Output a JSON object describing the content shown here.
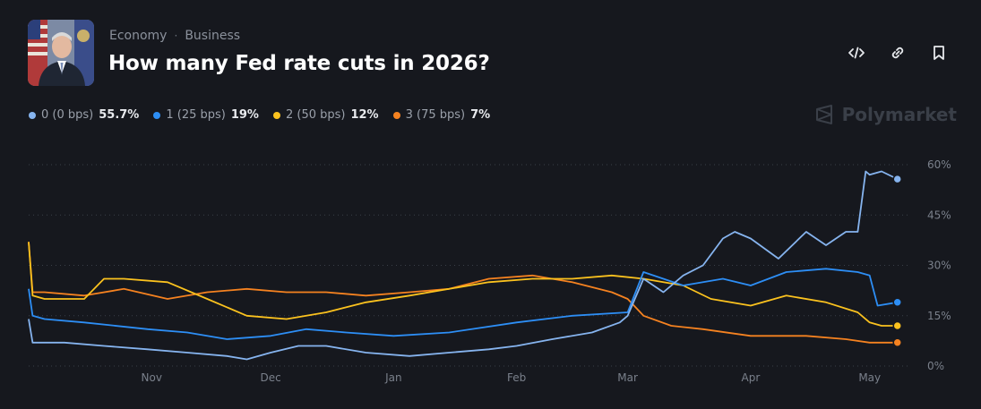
{
  "header": {
    "category": "Economy",
    "subcategory": "Business",
    "title": "How many Fed rate cuts in 2026?"
  },
  "actions": [
    {
      "name": "embed-icon"
    },
    {
      "name": "link-icon"
    },
    {
      "name": "bookmark-icon"
    }
  ],
  "brand": {
    "name": "Polymarket"
  },
  "colors": {
    "s0": "#86b4ef",
    "s1": "#2d8ef5",
    "s2": "#fbc21e",
    "s3": "#f58220",
    "background": "#16181e"
  },
  "legend": [
    {
      "label": "0 (0 bps)",
      "value": "55.7%"
    },
    {
      "label": "1 (25 bps)",
      "value": "19%"
    },
    {
      "label": "2 (50 bps)",
      "value": "12%"
    },
    {
      "label": "3 (75 bps)",
      "value": "7%"
    }
  ],
  "chart_data": {
    "type": "line",
    "y_ticks": [
      "60%",
      "45%",
      "30%",
      "15%",
      "0%"
    ],
    "x_ticks": [
      "Nov",
      "Dec",
      "Jan",
      "Feb",
      "Mar",
      "Apr",
      "May"
    ],
    "ylim": [
      0,
      60
    ],
    "grid": true,
    "legend_position": "top-left",
    "x_domain": [
      "2025-10-01",
      "2026-05-11"
    ],
    "series": [
      {
        "name": "0 (0 bps)",
        "color": "#86b4ef",
        "x": [
          "2025-10-01",
          "2025-10-02",
          "2025-10-04",
          "2025-10-10",
          "2025-10-20",
          "2025-10-31",
          "2025-11-10",
          "2025-11-20",
          "2025-11-25",
          "2025-12-01",
          "2025-12-08",
          "2025-12-15",
          "2025-12-25",
          "2026-01-05",
          "2026-01-15",
          "2026-01-25",
          "2026-02-01",
          "2026-02-10",
          "2026-02-20",
          "2026-02-27",
          "2026-03-01",
          "2026-03-05",
          "2026-03-10",
          "2026-03-15",
          "2026-03-20",
          "2026-03-25",
          "2026-03-28",
          "2026-04-01",
          "2026-04-08",
          "2026-04-15",
          "2026-04-20",
          "2026-04-25",
          "2026-04-28",
          "2026-04-30",
          "2026-05-01",
          "2026-05-04",
          "2026-05-08"
        ],
        "y": [
          14,
          7,
          7,
          7,
          6,
          5,
          4,
          3,
          2,
          4,
          6,
          6,
          4,
          3,
          4,
          5,
          6,
          8,
          10,
          13,
          15,
          26,
          22,
          27,
          30,
          38,
          40,
          38,
          32,
          40,
          36,
          40,
          40,
          58,
          57,
          58,
          55.7
        ]
      },
      {
        "name": "1 (25 bps)",
        "color": "#2d8ef5",
        "x": [
          "2025-10-01",
          "2025-10-02",
          "2025-10-05",
          "2025-10-15",
          "2025-10-31",
          "2025-11-10",
          "2025-11-20",
          "2025-12-01",
          "2025-12-10",
          "2025-12-20",
          "2026-01-01",
          "2026-01-15",
          "2026-02-01",
          "2026-02-15",
          "2026-03-01",
          "2026-03-05",
          "2026-03-15",
          "2026-03-25",
          "2026-04-01",
          "2026-04-10",
          "2026-04-20",
          "2026-04-28",
          "2026-05-01",
          "2026-05-03",
          "2026-05-08"
        ],
        "y": [
          23,
          15,
          14,
          13,
          11,
          10,
          8,
          9,
          11,
          10,
          9,
          10,
          13,
          15,
          16,
          28,
          24,
          26,
          24,
          28,
          29,
          28,
          27,
          18,
          19
        ]
      },
      {
        "name": "2 (50 bps)",
        "color": "#fbc21e",
        "x": [
          "2025-10-01",
          "2025-10-02",
          "2025-10-05",
          "2025-10-15",
          "2025-10-20",
          "2025-10-25",
          "2025-11-05",
          "2025-11-15",
          "2025-11-25",
          "2025-12-05",
          "2025-12-15",
          "2025-12-25",
          "2026-01-05",
          "2026-01-15",
          "2026-01-25",
          "2026-02-05",
          "2026-02-15",
          "2026-02-25",
          "2026-03-05",
          "2026-03-15",
          "2026-03-22",
          "2026-04-01",
          "2026-04-10",
          "2026-04-20",
          "2026-04-28",
          "2026-05-01",
          "2026-05-04",
          "2026-05-08"
        ],
        "y": [
          37,
          21,
          20,
          20,
          26,
          26,
          25,
          20,
          15,
          14,
          16,
          19,
          21,
          23,
          25,
          26,
          26,
          27,
          26,
          24,
          20,
          18,
          21,
          19,
          16,
          13,
          12,
          12
        ]
      },
      {
        "name": "3 (75 bps)",
        "color": "#f58220",
        "x": [
          "2025-10-01",
          "2025-10-02",
          "2025-10-05",
          "2025-10-15",
          "2025-10-25",
          "2025-11-05",
          "2025-11-15",
          "2025-11-25",
          "2025-12-05",
          "2025-12-15",
          "2025-12-25",
          "2026-01-05",
          "2026-01-15",
          "2026-01-25",
          "2026-02-05",
          "2026-02-15",
          "2026-02-25",
          "2026-03-01",
          "2026-03-05",
          "2026-03-12",
          "2026-03-20",
          "2026-04-01",
          "2026-04-15",
          "2026-04-25",
          "2026-05-01",
          "2026-05-08"
        ],
        "y": [
          37,
          22,
          22,
          21,
          23,
          20,
          22,
          23,
          22,
          22,
          21,
          22,
          23,
          26,
          27,
          25,
          22,
          20,
          15,
          12,
          11,
          9,
          9,
          8,
          7,
          7
        ]
      }
    ]
  }
}
